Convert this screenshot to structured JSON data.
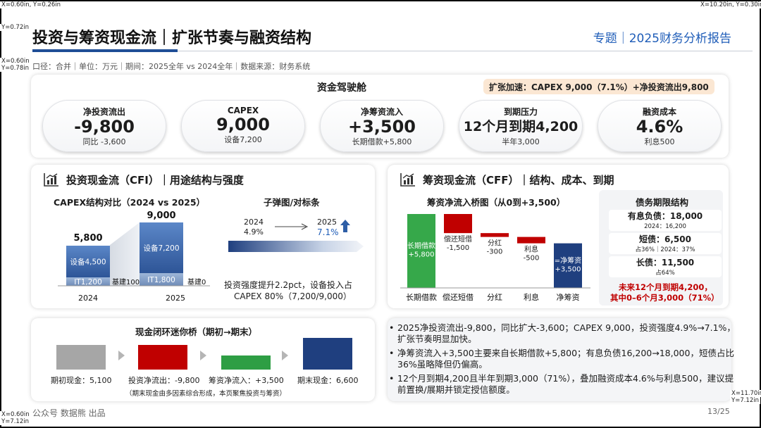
{
  "corners": {
    "tl": "X=0.60in, Y=0.26in",
    "tr": "X=10.20in, Y=0.30in",
    "ml1": "Y=0.72in",
    "ml2a": "X=0.60in",
    "ml2b": "Y=0.78in",
    "br_a": "X=11.70in",
    "br_b": "Y=7.12in",
    "bl_a": "X=0.60in",
    "bl_b": "Y=7.12in"
  },
  "header": {
    "title": "投资与筹资现金流｜扩张节奏与融资结构",
    "topic": "专题｜2025财务分析报告",
    "meta": "口径：合并｜单位：万元｜期间：2025全年 vs 2024全年｜数据来源：财务系统"
  },
  "cockpit": {
    "title": "资金驾驶舱",
    "badge": "扩张加速：CAPEX 9,000（7.1%）+净投资流出9,800",
    "kpis": [
      {
        "label": "净投资流出",
        "value": "-9,800",
        "sub": "同比 -3,600"
      },
      {
        "label": "CAPEX",
        "value": "9,000",
        "sub": "设备7,200"
      },
      {
        "label": "净筹资流入",
        "value": "+3,500",
        "sub": "长期借款+5,800"
      },
      {
        "label": "到期压力",
        "value": "12个月到期4,200",
        "sub": "半年3,000"
      },
      {
        "label": "融资成本",
        "value": "4.6%",
        "sub": "利息500"
      }
    ]
  },
  "cfi": {
    "title": "投资现金流（CFI）｜用途结构与强度",
    "chart_title": "CAPEX结构对比（2024 vs 2025）",
    "chart_data": {
      "type": "bar",
      "categories": [
        "2024",
        "2025"
      ],
      "totals": [
        5800,
        9000
      ],
      "total_labels": [
        "5,800",
        "9,000"
      ],
      "series": [
        {
          "name": "设备",
          "values": [
            4500,
            7200
          ],
          "labels": [
            "设备4,500",
            "设备7,200"
          ]
        },
        {
          "name": "IT",
          "values": [
            1200,
            1800
          ],
          "labels": [
            "IT1,200",
            "IT1,800"
          ]
        },
        {
          "name": "基建",
          "values": [
            100,
            0
          ],
          "labels": [
            "基建100",
            "基建0"
          ]
        }
      ]
    },
    "bullet": {
      "title": "子弹图/对标条",
      "y1": "2024",
      "v1": "4.9%",
      "y2": "2025",
      "v2": "7.1%",
      "note1": "投资强度提升2.2pct，设备投入占",
      "note2": "CAPEX 80%（7,200/9,000）"
    }
  },
  "cff": {
    "title": "筹资现金流（CFF）｜结构、成本、到期",
    "chart_title": "筹资净流入桥图（从0到+3,500）",
    "chart_data": {
      "type": "bar",
      "categories": [
        "长期借款",
        "偿还短借",
        "分红",
        "利息",
        "净筹资"
      ],
      "values": [
        5800,
        -1500,
        -300,
        -500,
        3500
      ],
      "labels": [
        "长期借款\n+5,800",
        "偿还短借\n-1,500",
        "分红\n-300",
        "利息\n-500",
        "=净筹资\n+3,500"
      ]
    },
    "debt": {
      "title": "债务期限结构",
      "rows": [
        {
          "main": "有息负债：18,000",
          "sub": "2024：16,200"
        },
        {
          "main": "短债：6,500",
          "sub": "占36%｜2024：37%"
        },
        {
          "main": "长债：11,500",
          "sub": "占64%"
        }
      ],
      "warn1": "未来12个月到期4,200，",
      "warn2": "其中0–6个月3,000（71%）"
    }
  },
  "bridge": {
    "title": "现金闭环迷你桥（期初→期末）",
    "items": [
      {
        "label": "期初现金：5,100",
        "color": "#a6a6a6"
      },
      {
        "label": "投资净流出：-9,800",
        "color": "#c00000"
      },
      {
        "label": "筹资净流入：+3,500",
        "color": "#2e9e44"
      },
      {
        "label": "期末现金：6,600",
        "color": "#1f3f7f"
      }
    ],
    "note": "（期末现金由多因素综合形成，本页聚焦投资与筹资）"
  },
  "bullets": [
    "2025净投资流出-9,800，同比扩大-3,600；CAPEX 9,000，投资强度4.9%→7.1%，扩张节奏明显加快。",
    "净筹资流入+3,500主要来自长期借款+5,800；有息负债16,200→18,000，短债占比36%虽略降但仍偏高。",
    "12个月到期4,200且半年到期3,000（71%），叠加融资成本4.6%与利息500，建议提前置换/展期并锁定授信额度。"
  ],
  "footer": {
    "source": "公众号 数据熊 出品",
    "page": "13/25"
  }
}
